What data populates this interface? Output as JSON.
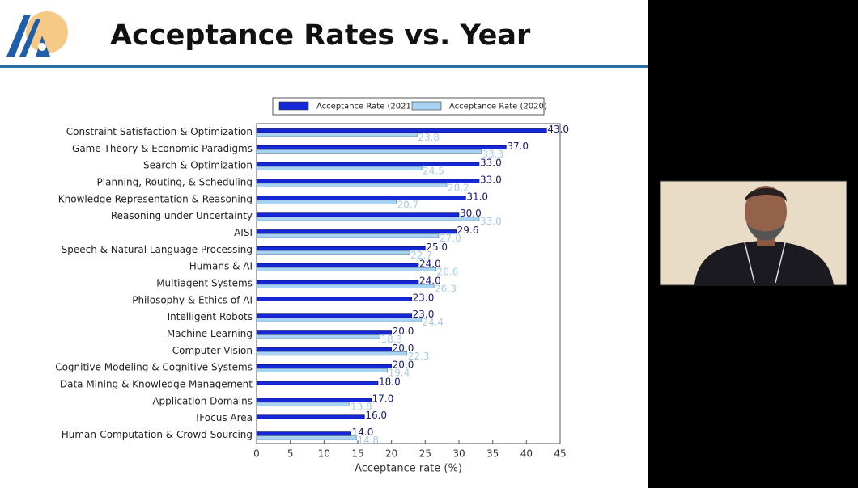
{
  "slide": {
    "title": "Acceptance Rates vs. Year"
  },
  "chart_data": {
    "type": "bar",
    "orientation": "horizontal",
    "categories": [
      "Constraint Satisfaction & Optimization",
      "Game Theory & Economic Paradigms",
      "Search & Optimization",
      "Planning, Routing, & Scheduling",
      "Knowledge Representation & Reasoning",
      "Reasoning under Uncertainty",
      "AISI",
      "Speech & Natural Language Processing",
      "Humans & AI",
      "Multiagent Systems",
      "Philosophy & Ethics of AI",
      "Intelligent Robots",
      "Machine Learning",
      "Computer Vision",
      "Cognitive Modeling & Cognitive Systems",
      "Data Mining & Knowledge Management",
      "Application Domains",
      "!Focus Area",
      "Human-Computation & Crowd Sourcing"
    ],
    "series": [
      {
        "name": "Acceptance Rate (2021)",
        "color": "#1428d8",
        "label_color": "#1a1a70",
        "values": [
          43,
          37,
          33,
          33,
          31,
          30,
          29.6,
          25,
          24,
          24,
          23,
          23,
          20,
          20,
          20,
          18,
          17,
          16,
          14
        ],
        "value_labels": [
          "43.0",
          "37.0",
          "33.0",
          "33.0",
          "31.0",
          "30.0",
          "29.6",
          "25.0",
          "24.0",
          "24.0",
          "23.0",
          "23.0",
          "20.0",
          "20.0",
          "20.0",
          "18.0",
          "17.0",
          "16.0",
          "14.0"
        ]
      },
      {
        "name": "Acceptance Rate (2020)",
        "color": "#a9d3f2",
        "label_color": "#a9cbe6",
        "values": [
          23.8,
          33.3,
          24.5,
          28.2,
          20.7,
          33,
          27,
          22.7,
          26.6,
          26.3,
          null,
          24.4,
          18.3,
          22.3,
          19.4,
          null,
          13.8,
          null,
          14.8
        ],
        "value_labels": [
          "23.8",
          "33.3",
          "24.5",
          "28.2",
          "20.7",
          "33.0",
          "27.0",
          "22.7",
          "26.6",
          "26.3",
          null,
          "24.4",
          "18.3",
          "22.3",
          "19.4",
          null,
          "13.8",
          null,
          "14.8"
        ]
      }
    ],
    "x_label": "Acceptance rate (%)",
    "xlim": [
      0,
      45
    ],
    "xticks": [
      0,
      5,
      10,
      15,
      20,
      25,
      30,
      35,
      40,
      45
    ],
    "legend": "top"
  }
}
